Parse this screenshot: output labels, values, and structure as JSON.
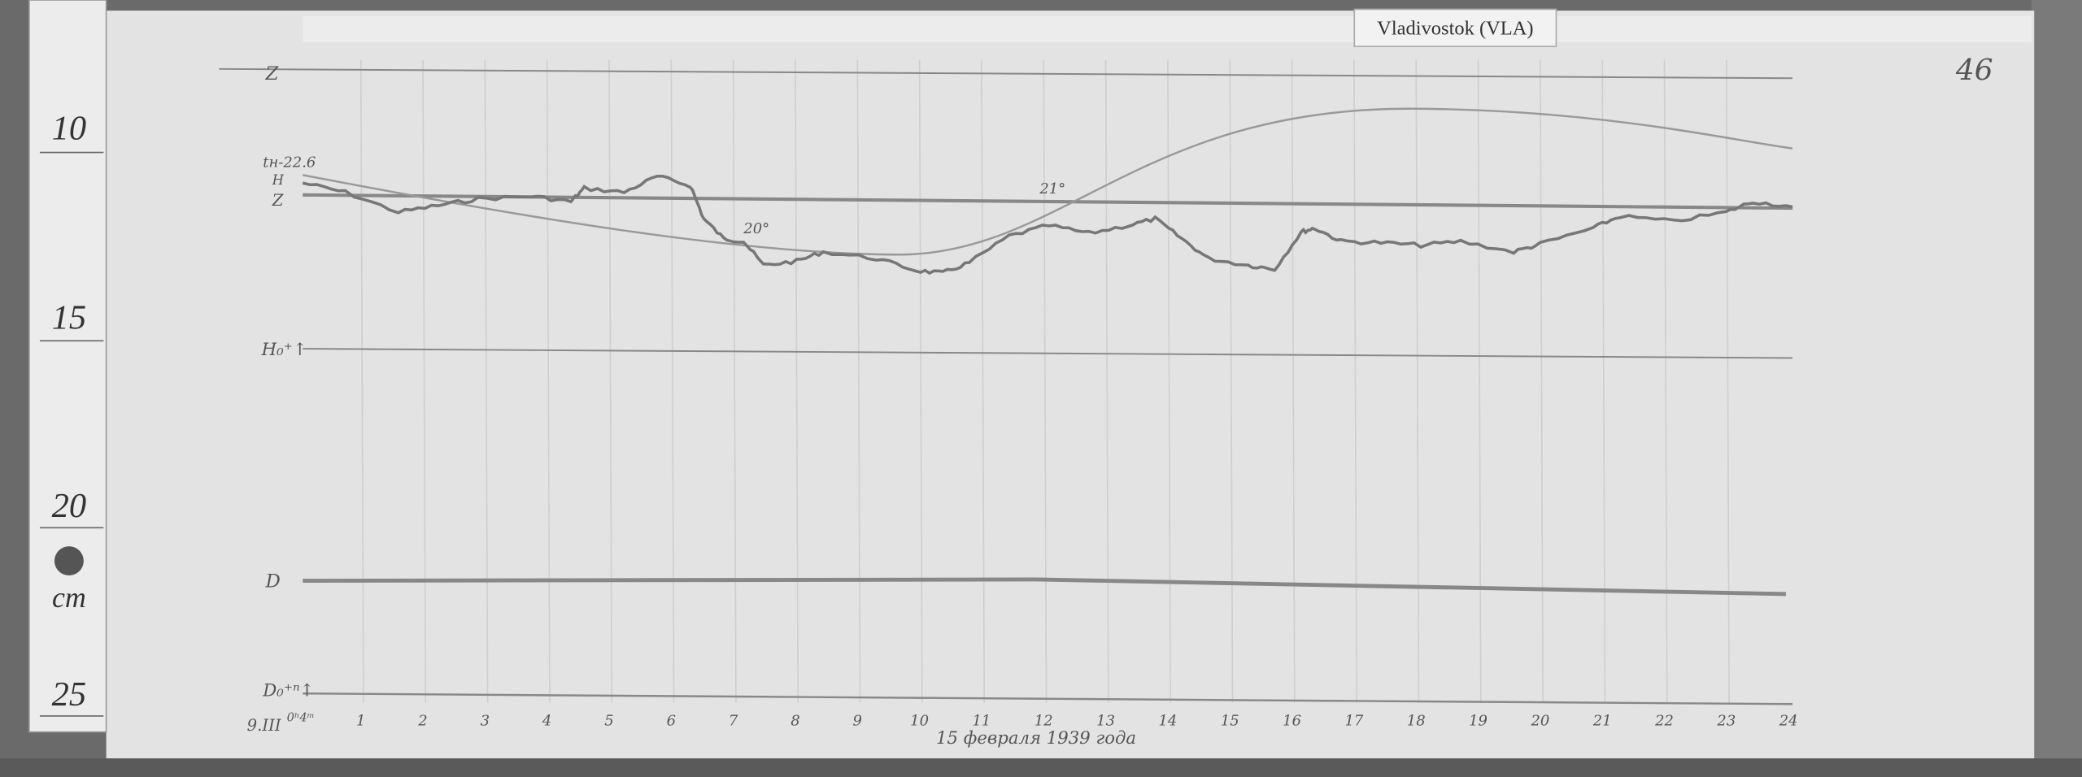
{
  "station_label": "Vladivostok (VLA)",
  "page_number": "46",
  "ruler": {
    "marks": [
      "10",
      "15",
      "20",
      "25"
    ],
    "unit": "cm"
  },
  "trace_labels": {
    "z_top": "Z",
    "temperature": "tн-22.6",
    "h": "H",
    "z": "Z",
    "h_base": "H₀⁺↑",
    "d": "D",
    "d_base": "D₀⁺ⁿ↑"
  },
  "annotations": {
    "temp_a": "21°",
    "temp_b": "20°",
    "start": "9.III",
    "start_time": "0ʰ4ᵐ",
    "date": "15 февраля 1939 года"
  },
  "hours": [
    "1",
    "2",
    "3",
    "4",
    "5",
    "6",
    "7",
    "8",
    "9",
    "10",
    "11",
    "12",
    "13",
    "14",
    "15",
    "16",
    "17",
    "18",
    "19",
    "20",
    "21",
    "22",
    "23",
    "24"
  ]
}
